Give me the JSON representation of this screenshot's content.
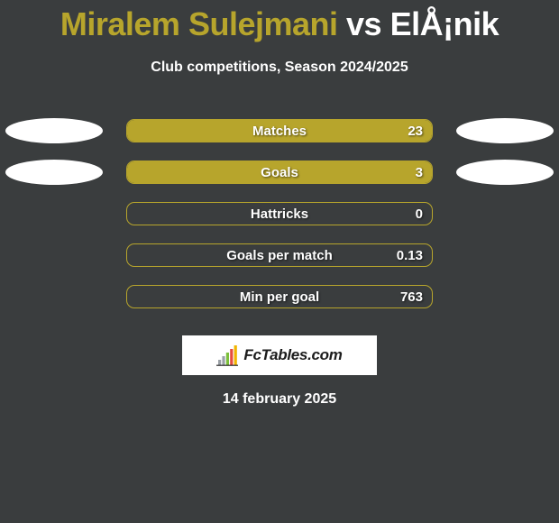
{
  "title": {
    "player1": "Miralem Sulejmani",
    "vs": "vs",
    "player2": "ElÅ¡nik",
    "player1_color": "#b7a52c",
    "vs_color": "#ffffff",
    "player2_color": "#ffffff"
  },
  "subtitle": "Club competitions, Season 2024/2025",
  "background_color": "#3a3d3e",
  "pill_width": 340,
  "rows": [
    {
      "label": "Matches",
      "value": "23",
      "fill_pct": 100,
      "fill_color": "#b7a52c",
      "border_color": "#b7a52c",
      "left_ellipse_color": "#ffffff",
      "right_ellipse_color": "#ffffff",
      "left_ellipse_show": true,
      "right_ellipse_show": true
    },
    {
      "label": "Goals",
      "value": "3",
      "fill_pct": 100,
      "fill_color": "#b7a52c",
      "border_color": "#b7a52c",
      "left_ellipse_color": "#ffffff",
      "right_ellipse_color": "#ffffff",
      "left_ellipse_show": true,
      "right_ellipse_show": true
    },
    {
      "label": "Hattricks",
      "value": "0",
      "fill_pct": 0,
      "fill_color": "#b7a52c",
      "border_color": "#b7a52c",
      "left_ellipse_show": false,
      "right_ellipse_show": false
    },
    {
      "label": "Goals per match",
      "value": "0.13",
      "fill_pct": 0,
      "fill_color": "#b7a52c",
      "border_color": "#b7a52c",
      "left_ellipse_show": false,
      "right_ellipse_show": false
    },
    {
      "label": "Min per goal",
      "value": "763",
      "fill_pct": 0,
      "fill_color": "#b7a52c",
      "border_color": "#b7a52c",
      "left_ellipse_show": false,
      "right_ellipse_show": false
    }
  ],
  "brand": {
    "text": "FcTables.com",
    "bar_colors": [
      "#9aa0a6",
      "#9aa0a6",
      "#7bbf3a",
      "#e74c3c",
      "#f1b500"
    ]
  },
  "date": "14 february 2025"
}
